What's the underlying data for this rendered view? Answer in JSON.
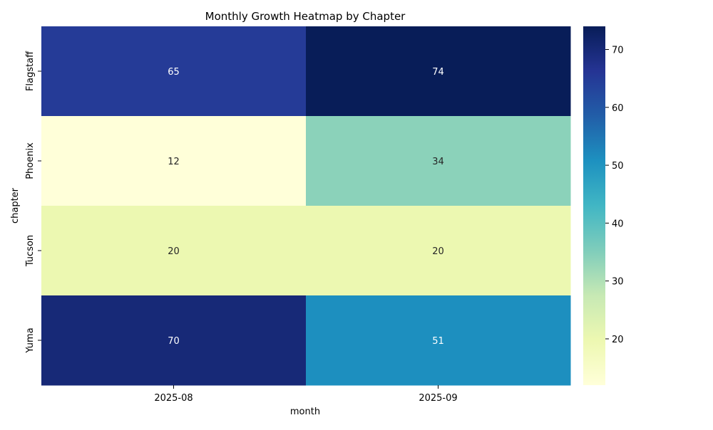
{
  "chart_data": {
    "type": "heatmap",
    "title": "Monthly Growth Heatmap by Chapter",
    "xlabel": "month",
    "ylabel": "chapter",
    "x_categories": [
      "2025-08",
      "2025-09"
    ],
    "y_categories": [
      "Flagstaff",
      "Phoenix",
      "Tucson",
      "Yuma"
    ],
    "values": [
      [
        65,
        74
      ],
      [
        12,
        34
      ],
      [
        20,
        20
      ],
      [
        70,
        51
      ]
    ],
    "colorbar": {
      "min": 12,
      "max": 74,
      "ticks": [
        20,
        30,
        40,
        50,
        60,
        70
      ]
    },
    "colormap": "YlGnBu",
    "colormap_stops": [
      "#ffffd9",
      "#edf8b1",
      "#c7e9b4",
      "#7fcdbb",
      "#41b6c4",
      "#1d91c0",
      "#225ea8",
      "#253494",
      "#081d58"
    ],
    "annotation_threshold": 43
  }
}
